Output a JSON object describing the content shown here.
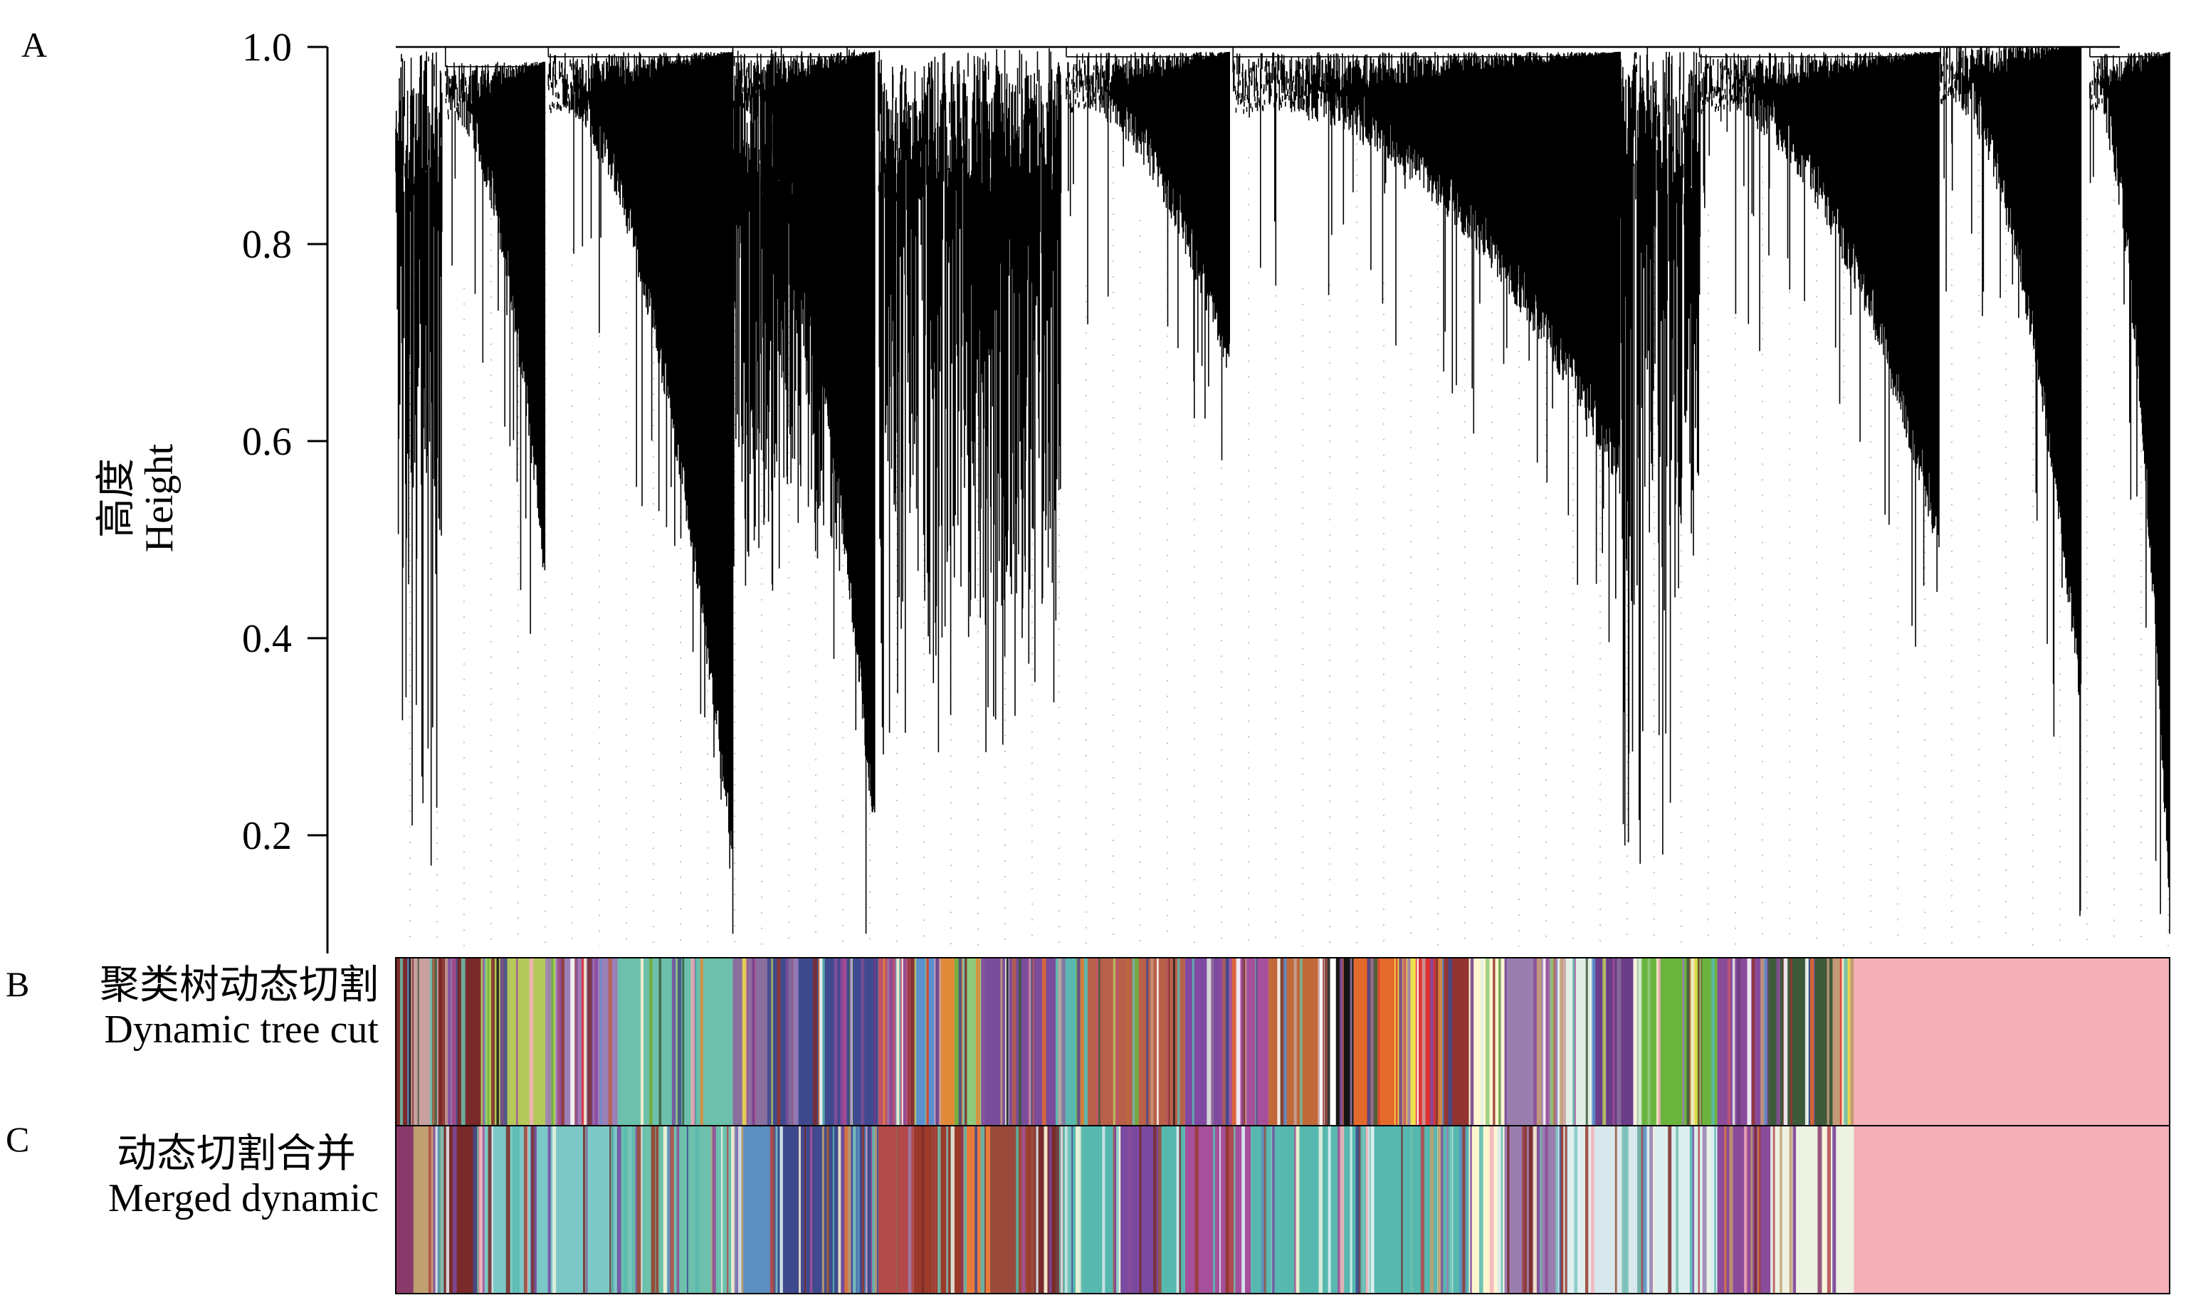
{
  "chart_data": {
    "type": "dendrogram",
    "panels": [
      {
        "letter": "A",
        "name": "dendrogram"
      },
      {
        "letter": "B",
        "name": "dynamic-tree-cut"
      },
      {
        "letter": "C",
        "name": "merged-dynamic"
      }
    ],
    "y_axis": {
      "label_cn": "高度",
      "label_en": "Height",
      "ticks": [
        "1.0",
        "0.8",
        "0.6",
        "0.4",
        "0.2"
      ],
      "tick_values": [
        1.0,
        0.8,
        0.6,
        0.4,
        0.2
      ],
      "range": [
        0.08,
        1.0
      ]
    },
    "clusters": [
      {
        "x0": 0.0,
        "x1": 0.026,
        "top": 1.0,
        "bottom": 0.16,
        "type": "sparse"
      },
      {
        "x0": 0.028,
        "x1": 0.084,
        "top": 0.98,
        "bottom": 0.5,
        "type": "curve"
      },
      {
        "x0": 0.086,
        "x1": 0.19,
        "top": 0.99,
        "bottom": 0.21,
        "type": "curve"
      },
      {
        "x0": 0.19,
        "x1": 0.27,
        "top": 1.0,
        "bottom": 0.5,
        "type": "sparse"
      },
      {
        "x0": 0.19,
        "x1": 0.27,
        "top": 0.99,
        "bottom": 0.23,
        "type": "curve"
      },
      {
        "x0": 0.272,
        "x1": 0.375,
        "top": 1.0,
        "bottom": 0.28,
        "type": "sparse"
      },
      {
        "x0": 0.378,
        "x1": 0.47,
        "top": 0.99,
        "bottom": 0.7,
        "type": "curve"
      },
      {
        "x0": 0.472,
        "x1": 0.69,
        "top": 0.99,
        "bottom": 0.6,
        "type": "curve"
      },
      {
        "x0": 0.69,
        "x1": 0.735,
        "top": 1.0,
        "bottom": 0.15,
        "type": "sparse"
      },
      {
        "x0": 0.735,
        "x1": 0.87,
        "top": 0.99,
        "bottom": 0.53,
        "type": "curve"
      },
      {
        "x0": 0.87,
        "x1": 0.95,
        "top": 1.0,
        "bottom": 0.37,
        "type": "curve"
      },
      {
        "x0": 0.955,
        "x1": 1.0,
        "top": 0.99,
        "bottom": 0.16,
        "type": "curve"
      }
    ],
    "color_rows": [
      {
        "label_cn": "聚类树动态切割",
        "label_en": "Dynamic tree cut",
        "segments": [
          {
            "x0": 0.0,
            "x1": 0.01,
            "color": "#7e2a2a"
          },
          {
            "x0": 0.01,
            "x1": 0.024,
            "color": "#c8a0a0"
          },
          {
            "x0": 0.024,
            "x1": 0.048,
            "color": "#7a2a2a"
          },
          {
            "x0": 0.048,
            "x1": 0.09,
            "color": "#b5c95a"
          },
          {
            "x0": 0.09,
            "x1": 0.125,
            "color": "#9a7fb8"
          },
          {
            "x0": 0.125,
            "x1": 0.19,
            "color": "#6cc0ac"
          },
          {
            "x0": 0.19,
            "x1": 0.212,
            "color": "#8a6f9e"
          },
          {
            "x0": 0.212,
            "x1": 0.272,
            "color": "#3f4a8e"
          },
          {
            "x0": 0.272,
            "x1": 0.292,
            "color": "#c0556a"
          },
          {
            "x0": 0.292,
            "x1": 0.306,
            "color": "#5b8fd0"
          },
          {
            "x0": 0.306,
            "x1": 0.32,
            "color": "#e08a3a"
          },
          {
            "x0": 0.32,
            "x1": 0.33,
            "color": "#8fc97a"
          },
          {
            "x0": 0.33,
            "x1": 0.372,
            "color": "#7a4c9c"
          },
          {
            "x0": 0.372,
            "x1": 0.39,
            "color": "#5ab8b0"
          },
          {
            "x0": 0.39,
            "x1": 0.445,
            "color": "#b8604a"
          },
          {
            "x0": 0.445,
            "x1": 0.47,
            "color": "#7f4aa0"
          },
          {
            "x0": 0.47,
            "x1": 0.492,
            "color": "#a64f9a"
          },
          {
            "x0": 0.492,
            "x1": 0.52,
            "color": "#c06a3a"
          },
          {
            "x0": 0.52,
            "x1": 0.53,
            "color": "#ffffff"
          },
          {
            "x0": 0.53,
            "x1": 0.54,
            "color": "#151515"
          },
          {
            "x0": 0.54,
            "x1": 0.563,
            "color": "#e46a2c"
          },
          {
            "x0": 0.563,
            "x1": 0.575,
            "color": "#ede14a"
          },
          {
            "x0": 0.575,
            "x1": 0.586,
            "color": "#e03030"
          },
          {
            "x0": 0.586,
            "x1": 0.605,
            "color": "#923530"
          },
          {
            "x0": 0.605,
            "x1": 0.625,
            "color": "#fff6d0"
          },
          {
            "x0": 0.625,
            "x1": 0.655,
            "color": "#9a7eb0"
          },
          {
            "x0": 0.655,
            "x1": 0.675,
            "color": "#e2efe6"
          },
          {
            "x0": 0.675,
            "x1": 0.7,
            "color": "#6a3d88"
          },
          {
            "x0": 0.7,
            "x1": 0.745,
            "color": "#6ab43e"
          },
          {
            "x0": 0.745,
            "x1": 0.775,
            "color": "#8a4c9a"
          },
          {
            "x0": 0.775,
            "x1": 0.81,
            "color": "#3d5a3a"
          },
          {
            "x0": 0.81,
            "x1": 0.822,
            "color": "#c49a78"
          },
          {
            "x0": 0.822,
            "x1": 1.0,
            "color": "#f5b0b8"
          }
        ]
      },
      {
        "label_cn": "动态切割合并",
        "label_en": "Merged dynamic",
        "segments": [
          {
            "x0": 0.0,
            "x1": 0.01,
            "color": "#8a3a6a"
          },
          {
            "x0": 0.01,
            "x1": 0.024,
            "color": "#c0a070"
          },
          {
            "x0": 0.024,
            "x1": 0.048,
            "color": "#7a2a2a"
          },
          {
            "x0": 0.048,
            "x1": 0.125,
            "color": "#7cc8c6"
          },
          {
            "x0": 0.125,
            "x1": 0.19,
            "color": "#6cc0ac"
          },
          {
            "x0": 0.19,
            "x1": 0.212,
            "color": "#5a8fc0"
          },
          {
            "x0": 0.212,
            "x1": 0.272,
            "color": "#3f4a8e"
          },
          {
            "x0": 0.272,
            "x1": 0.292,
            "color": "#b34a4a"
          },
          {
            "x0": 0.292,
            "x1": 0.32,
            "color": "#9a3a2a"
          },
          {
            "x0": 0.32,
            "x1": 0.335,
            "color": "#e97b3a"
          },
          {
            "x0": 0.335,
            "x1": 0.36,
            "color": "#9a4a3a"
          },
          {
            "x0": 0.36,
            "x1": 0.372,
            "color": "#7a2a2a"
          },
          {
            "x0": 0.372,
            "x1": 0.405,
            "color": "#57b8b0"
          },
          {
            "x0": 0.405,
            "x1": 0.43,
            "color": "#7a4aa0"
          },
          {
            "x0": 0.43,
            "x1": 0.445,
            "color": "#57b8b0"
          },
          {
            "x0": 0.445,
            "x1": 0.482,
            "color": "#a64f9a"
          },
          {
            "x0": 0.482,
            "x1": 0.605,
            "color": "#57b8b0"
          },
          {
            "x0": 0.605,
            "x1": 0.625,
            "color": "#fff6d0"
          },
          {
            "x0": 0.625,
            "x1": 0.655,
            "color": "#9a7eb0"
          },
          {
            "x0": 0.655,
            "x1": 0.675,
            "color": "#e0eef0"
          },
          {
            "x0": 0.675,
            "x1": 0.7,
            "color": "#d8e8ec"
          },
          {
            "x0": 0.7,
            "x1": 0.745,
            "color": "#ddeeee"
          },
          {
            "x0": 0.745,
            "x1": 0.775,
            "color": "#8a4c9a"
          },
          {
            "x0": 0.775,
            "x1": 0.822,
            "color": "#eef2e2"
          },
          {
            "x0": 0.822,
            "x1": 1.0,
            "color": "#f5b0b8"
          }
        ]
      }
    ]
  }
}
